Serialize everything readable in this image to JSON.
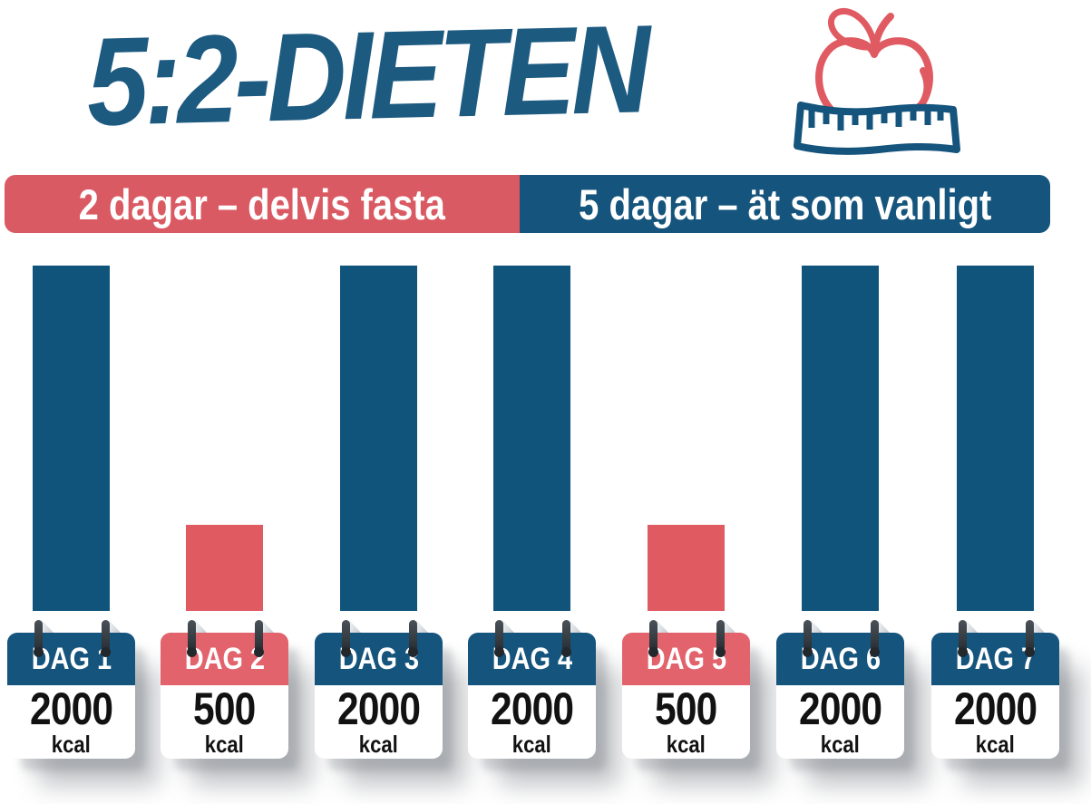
{
  "title": "5:2-DIETEN",
  "icon": {
    "name": "apple-with-measuring-tape",
    "apple_color": "#e05a62",
    "tape_color": "#15547c"
  },
  "legend": {
    "fast": {
      "label": "2 dagar – delvis fasta",
      "color": "#da5a63"
    },
    "normal": {
      "label": "5 dagar – ät som vanligt",
      "color": "#15547c"
    }
  },
  "days": [
    {
      "label": "DAG 1",
      "kcal": 2000,
      "unit": "kcal",
      "type": "normal"
    },
    {
      "label": "DAG 2",
      "kcal": 500,
      "unit": "kcal",
      "type": "fast"
    },
    {
      "label": "DAG 3",
      "kcal": 2000,
      "unit": "kcal",
      "type": "normal"
    },
    {
      "label": "DAG 4",
      "kcal": 2000,
      "unit": "kcal",
      "type": "normal"
    },
    {
      "label": "DAG 5",
      "kcal": 500,
      "unit": "kcal",
      "type": "fast"
    },
    {
      "label": "DAG 6",
      "kcal": 2000,
      "unit": "kcal",
      "type": "normal"
    },
    {
      "label": "DAG 7",
      "kcal": 2000,
      "unit": "kcal",
      "type": "normal"
    }
  ],
  "colors": {
    "blue": "#15547c",
    "red": "#e05a62",
    "title_blue": "#1d5a80",
    "ring_gray": "#343b41",
    "text_black": "#121212"
  },
  "chart_data": {
    "type": "bar",
    "title": "5:2-DIETEN",
    "categories": [
      "DAG 1",
      "DAG 2",
      "DAG 3",
      "DAG 4",
      "DAG 5",
      "DAG 6",
      "DAG 7"
    ],
    "values": [
      2000,
      500,
      2000,
      2000,
      500,
      2000,
      2000
    ],
    "unit": "kcal",
    "bar_colors": [
      "#15547c",
      "#e05a62",
      "#15547c",
      "#15547c",
      "#e05a62",
      "#15547c",
      "#15547c"
    ],
    "legend": [
      {
        "label": "2 dagar – delvis fasta",
        "color": "#da5a63"
      },
      {
        "label": "5 dagar – ät som vanligt",
        "color": "#15547c"
      }
    ],
    "legend_position": "top",
    "xlabel": "",
    "ylabel": "kcal",
    "ylim": [
      0,
      2000
    ],
    "grid": false
  }
}
